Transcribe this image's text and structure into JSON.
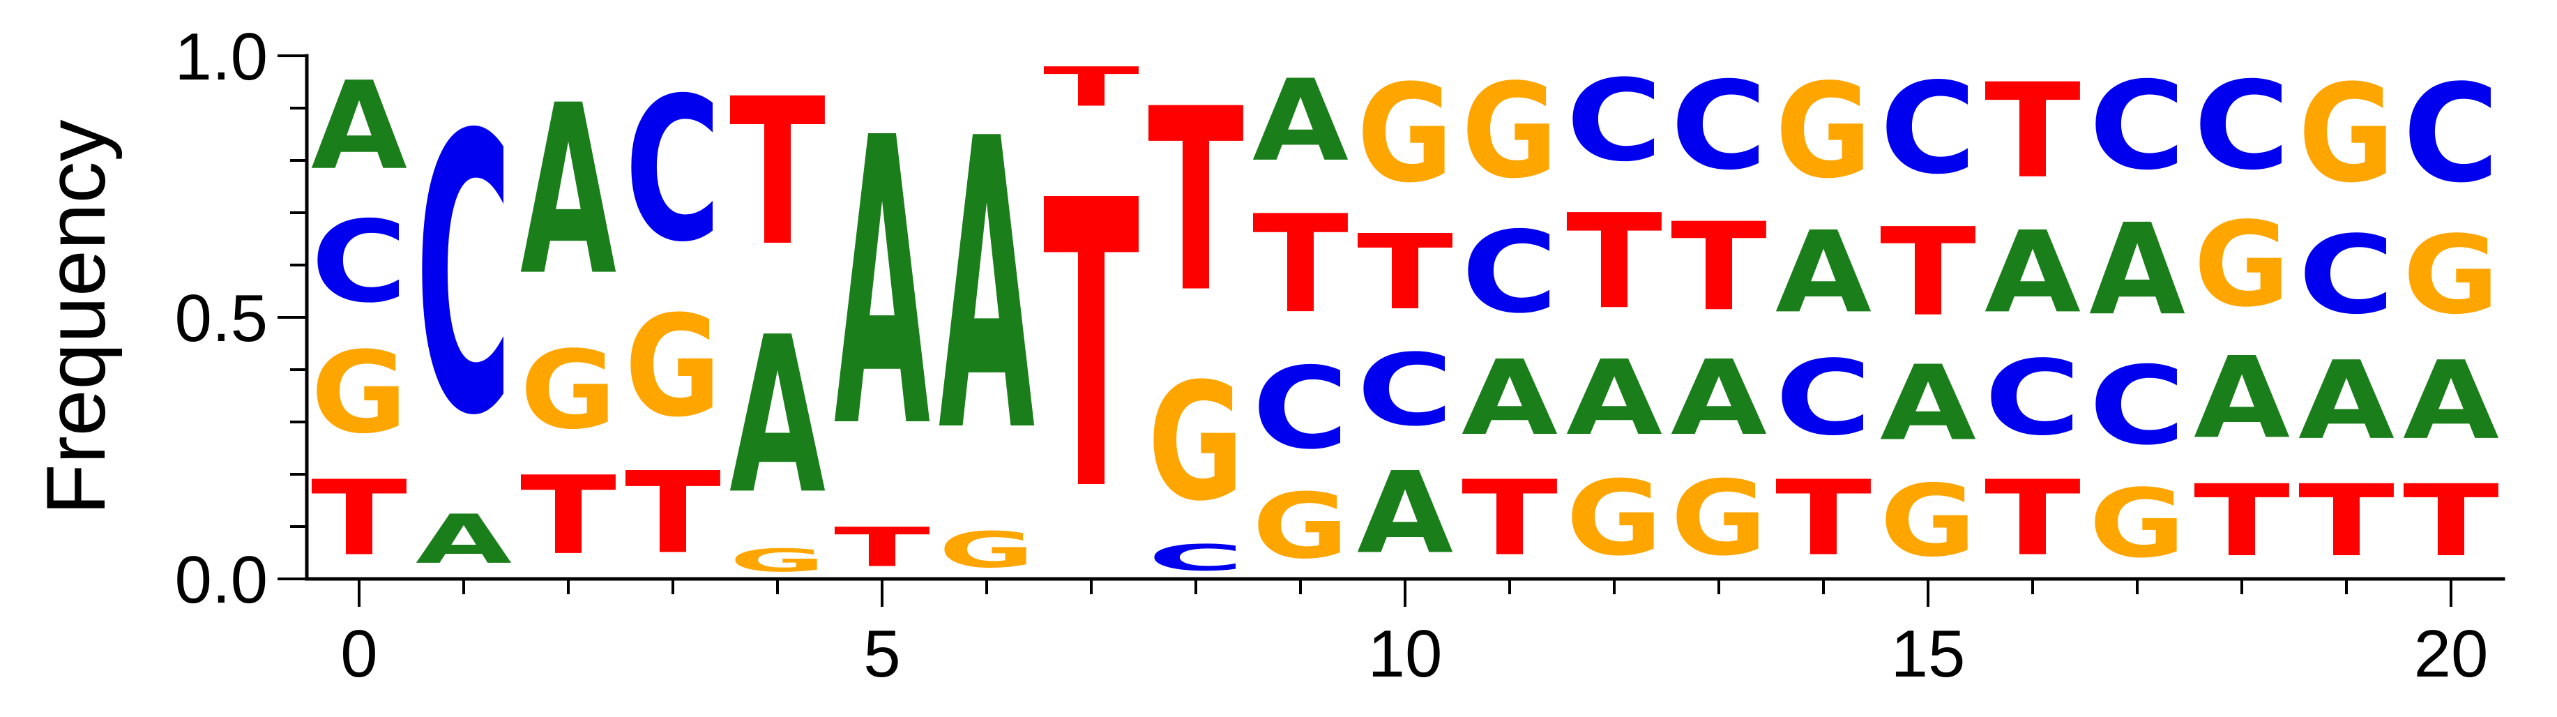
{
  "chart_data": {
    "type": "sequence-logo",
    "ylabel": "Frequency",
    "xlabel": "",
    "ylim": [
      0,
      1
    ],
    "xlim": [
      -0.5,
      20.5
    ],
    "x_ticks": [
      0,
      5,
      10,
      15,
      20
    ],
    "y_ticks": [
      0.0,
      0.5,
      1.0
    ],
    "y_tick_labels": [
      "0.0",
      "0.5",
      "1.0"
    ],
    "colors": {
      "A": "#1a7f1a",
      "C": "#0000ee",
      "G": "#ffa500",
      "T": "#ff0000"
    },
    "positions": [
      {
        "pos": 0,
        "stack": [
          [
            "T",
            0.23
          ],
          [
            "G",
            0.25
          ],
          [
            "C",
            0.25
          ],
          [
            "A",
            0.27
          ]
        ]
      },
      {
        "pos": 1,
        "stack": [
          [
            "A",
            0.15
          ],
          [
            "C",
            0.85
          ]
        ]
      },
      {
        "pos": 2,
        "stack": [
          [
            "T",
            0.24
          ],
          [
            "G",
            0.24
          ],
          [
            "A",
            0.52
          ]
        ]
      },
      {
        "pos": 3,
        "stack": [
          [
            "T",
            0.25
          ],
          [
            "G",
            0.31
          ],
          [
            "C",
            0.44
          ]
        ]
      },
      {
        "pos": 4,
        "stack": [
          [
            "G",
            0.07
          ],
          [
            "A",
            0.48
          ],
          [
            "T",
            0.45
          ]
        ]
      },
      {
        "pos": 5,
        "stack": [
          [
            "T",
            0.12
          ],
          [
            "A",
            0.88
          ]
        ]
      },
      {
        "pos": 6,
        "stack": [
          [
            "G",
            0.11
          ],
          [
            "A",
            0.89
          ]
        ]
      },
      {
        "pos": 7,
        "stack": [
          [
            "T",
            0.88
          ],
          [
            "T",
            0.12
          ]
        ]
      },
      {
        "pos": 8,
        "stack": [
          [
            "C",
            0.08
          ],
          [
            "G",
            0.36
          ],
          [
            "T",
            0.56
          ]
        ]
      },
      {
        "pos": 9,
        "stack": [
          [
            "G",
            0.2
          ],
          [
            "C",
            0.25
          ],
          [
            "T",
            0.3
          ],
          [
            "A",
            0.25
          ]
        ]
      },
      {
        "pos": 10,
        "stack": [
          [
            "A",
            0.25
          ],
          [
            "C",
            0.22
          ],
          [
            "T",
            0.23
          ],
          [
            "G",
            0.3
          ]
        ]
      },
      {
        "pos": 11,
        "stack": [
          [
            "T",
            0.23
          ],
          [
            "A",
            0.23
          ],
          [
            "C",
            0.25
          ],
          [
            "G",
            0.29
          ]
        ]
      },
      {
        "pos": 12,
        "stack": [
          [
            "G",
            0.23
          ],
          [
            "A",
            0.23
          ],
          [
            "T",
            0.29
          ],
          [
            "C",
            0.25
          ]
        ]
      },
      {
        "pos": 13,
        "stack": [
          [
            "G",
            0.23
          ],
          [
            "A",
            0.23
          ],
          [
            "T",
            0.27
          ],
          [
            "C",
            0.27
          ]
        ]
      },
      {
        "pos": 14,
        "stack": [
          [
            "T",
            0.23
          ],
          [
            "C",
            0.23
          ],
          [
            "A",
            0.25
          ],
          [
            "G",
            0.29
          ]
        ]
      },
      {
        "pos": 15,
        "stack": [
          [
            "G",
            0.22
          ],
          [
            "A",
            0.23
          ],
          [
            "T",
            0.27
          ],
          [
            "C",
            0.28
          ]
        ]
      },
      {
        "pos": 16,
        "stack": [
          [
            "T",
            0.23
          ],
          [
            "C",
            0.23
          ],
          [
            "A",
            0.25
          ],
          [
            "T",
            0.29
          ]
        ]
      },
      {
        "pos": 17,
        "stack": [
          [
            "G",
            0.21
          ],
          [
            "C",
            0.24
          ],
          [
            "A",
            0.28
          ],
          [
            "C",
            0.27
          ]
        ]
      },
      {
        "pos": 18,
        "stack": [
          [
            "T",
            0.22
          ],
          [
            "A",
            0.25
          ],
          [
            "G",
            0.26
          ],
          [
            "C",
            0.27
          ]
        ]
      },
      {
        "pos": 19,
        "stack": [
          [
            "T",
            0.22
          ],
          [
            "A",
            0.24
          ],
          [
            "C",
            0.24
          ],
          [
            "G",
            0.3
          ]
        ]
      },
      {
        "pos": 20,
        "stack": [
          [
            "T",
            0.22
          ],
          [
            "A",
            0.24
          ],
          [
            "G",
            0.24
          ],
          [
            "C",
            0.3
          ]
        ]
      }
    ]
  }
}
